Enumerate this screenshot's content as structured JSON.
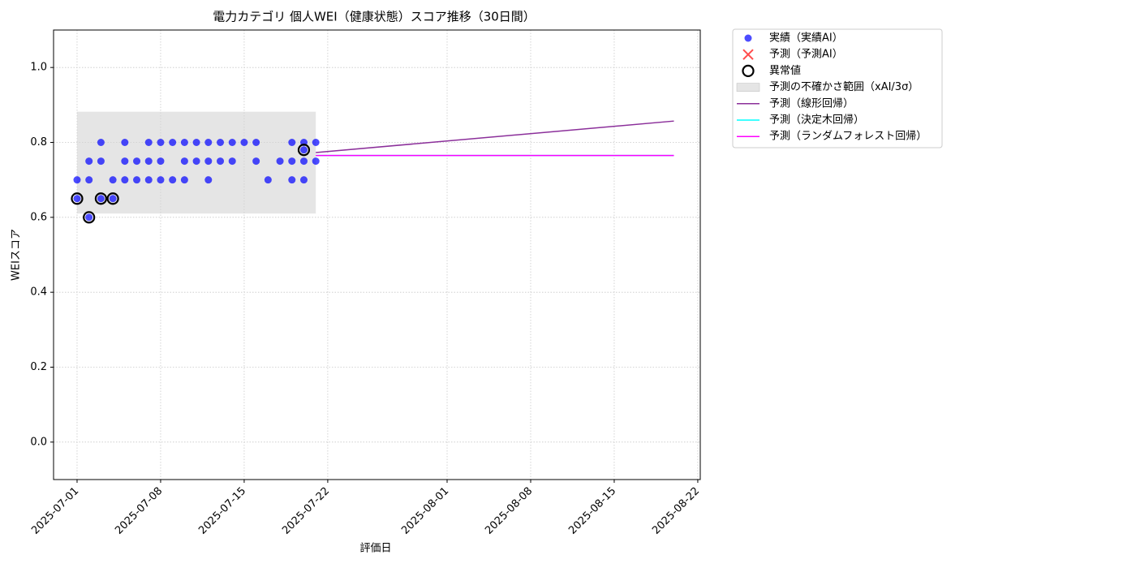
{
  "chart_data": {
    "type": "scatter",
    "title": "電力カテゴリ 個人WEI（健康状態）スコア推移（30日間）",
    "x_label": "評価日",
    "y_label": "WEIスコア",
    "xlim": [
      "2025-06-29T00:43",
      "2025-08-22T05:00"
    ],
    "ylim": [
      -0.1,
      1.1
    ],
    "xticks": [
      "2025-07-01",
      "2025-07-08",
      "2025-07-15",
      "2025-07-22",
      "2025-08-01",
      "2025-08-08",
      "2025-08-15",
      "2025-08-22"
    ],
    "yticks": [
      {
        "value": 0,
        "label": "0.0"
      },
      {
        "value": 0.2,
        "label": "0.2"
      },
      {
        "value": 0.4,
        "label": "0.4"
      },
      {
        "value": 0.6,
        "label": "0.6"
      },
      {
        "value": 0.8,
        "label": "0.8"
      },
      {
        "value": 1,
        "label": "1.0"
      }
    ],
    "grid": true,
    "legend": "outside-upper-right",
    "series": [
      {
        "name": "実績（実績AI）",
        "kind": "points",
        "color": "#0000ff",
        "x": [
          "2025-07-01",
          "2025-07-01",
          "2025-07-02",
          "2025-07-02",
          "2025-07-02",
          "2025-07-03",
          "2025-07-03",
          "2025-07-03",
          "2025-07-04",
          "2025-07-04",
          "2025-07-05",
          "2025-07-05",
          "2025-07-05",
          "2025-07-06",
          "2025-07-06",
          "2025-07-07",
          "2025-07-07",
          "2025-07-07",
          "2025-07-08",
          "2025-07-08",
          "2025-07-08",
          "2025-07-09",
          "2025-07-09",
          "2025-07-10",
          "2025-07-10",
          "2025-07-10",
          "2025-07-11",
          "2025-07-11",
          "2025-07-12",
          "2025-07-12",
          "2025-07-12",
          "2025-07-13",
          "2025-07-13",
          "2025-07-14",
          "2025-07-14",
          "2025-07-15",
          "2025-07-16",
          "2025-07-16",
          "2025-07-17",
          "2025-07-18",
          "2025-07-19",
          "2025-07-19",
          "2025-07-19",
          "2025-07-20",
          "2025-07-20",
          "2025-07-20",
          "2025-07-20",
          "2025-07-21",
          "2025-07-21"
        ],
        "values": [
          0.65,
          0.7,
          0.7,
          0.75,
          0.6,
          0.75,
          0.8,
          0.65,
          0.65,
          0.7,
          0.7,
          0.8,
          0.75,
          0.7,
          0.75,
          0.8,
          0.75,
          0.7,
          0.75,
          0.7,
          0.8,
          0.7,
          0.8,
          0.8,
          0.75,
          0.7,
          0.8,
          0.75,
          0.7,
          0.75,
          0.8,
          0.75,
          0.8,
          0.8,
          0.75,
          0.8,
          0.8,
          0.75,
          0.7,
          0.75,
          0.75,
          0.7,
          0.8,
          0.75,
          0.8,
          0.7,
          0.78,
          0.8,
          0.75
        ]
      },
      {
        "name": "予測（予測AI）",
        "kind": "cross",
        "color": "#ff0000",
        "x": [],
        "values": []
      },
      {
        "name": "異常値",
        "kind": "ring",
        "color": "#000000",
        "x": [
          "2025-07-01",
          "2025-07-02",
          "2025-07-03",
          "2025-07-04",
          "2025-07-20"
        ],
        "values": [
          0.65,
          0.6,
          0.65,
          0.65,
          0.78
        ]
      },
      {
        "name": "予測の不確かさ範囲（xAI/3σ）",
        "kind": "band",
        "color": "#d3d3d3",
        "x": [
          "2025-07-01",
          "2025-07-21"
        ],
        "lower": [
          0.61,
          0.61
        ],
        "upper": [
          0.882,
          0.882
        ]
      },
      {
        "name": "予測（線形回帰）",
        "kind": "line",
        "color": "#8b2f9a",
        "x": [
          "2025-07-21",
          "2025-08-20"
        ],
        "values": [
          0.773,
          0.857
        ]
      },
      {
        "name": "予測（決定木回帰）",
        "kind": "line",
        "color": "#00ffff",
        "x": [
          "2025-07-21",
          "2025-08-20"
        ],
        "values": [
          0.765,
          0.765
        ]
      },
      {
        "name": "予測（ランダムフォレスト回帰）",
        "kind": "line",
        "color": "#ff00ff",
        "x": [
          "2025-07-21",
          "2025-08-20"
        ],
        "values": [
          0.765,
          0.765
        ]
      }
    ]
  }
}
